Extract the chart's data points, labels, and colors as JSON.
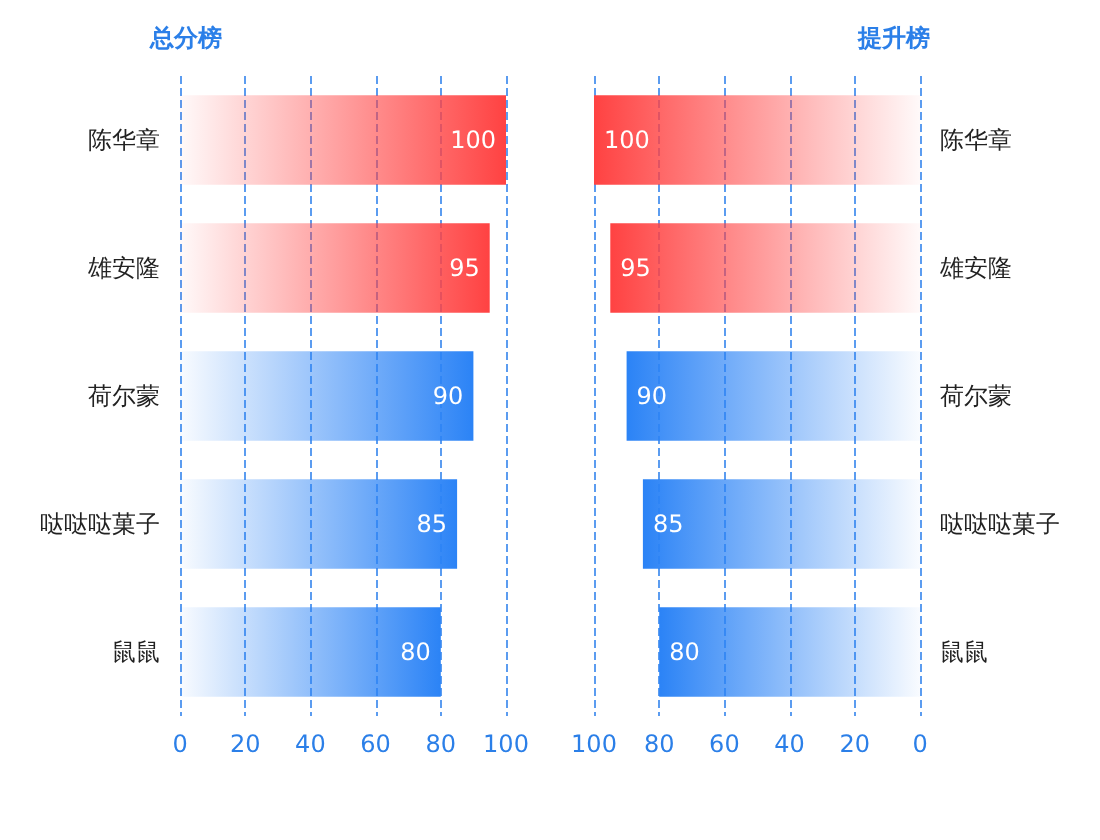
{
  "chart_data": [
    {
      "type": "bar",
      "orientation": "horizontal",
      "title": "总分榜",
      "categories": [
        "陈华章",
        "雄安隆",
        "荷尔蒙",
        "哒哒哒菓子",
        "鼠鼠"
      ],
      "values": [
        100,
        95,
        90,
        85,
        80
      ],
      "colors": [
        "#ff4242",
        "#ff4242",
        "#2b83f6",
        "#2b83f6",
        "#2b83f6"
      ],
      "xlim": [
        0,
        100
      ],
      "xticks": [
        0,
        20,
        40,
        60,
        80,
        100
      ],
      "grid": "x",
      "data_labels": true
    },
    {
      "type": "bar",
      "orientation": "horizontal",
      "title": "提升榜",
      "categories": [
        "陈华章",
        "雄安隆",
        "荷尔蒙",
        "哒哒哒菓子",
        "鼠鼠"
      ],
      "values": [
        100,
        95,
        90,
        85,
        80
      ],
      "colors": [
        "#ff4242",
        "#ff4242",
        "#2b83f6",
        "#2b83f6",
        "#2b83f6"
      ],
      "xlim": [
        100,
        0
      ],
      "xticks": [
        100,
        80,
        60,
        40,
        20,
        0
      ],
      "grid": "x",
      "data_labels": true
    }
  ]
}
